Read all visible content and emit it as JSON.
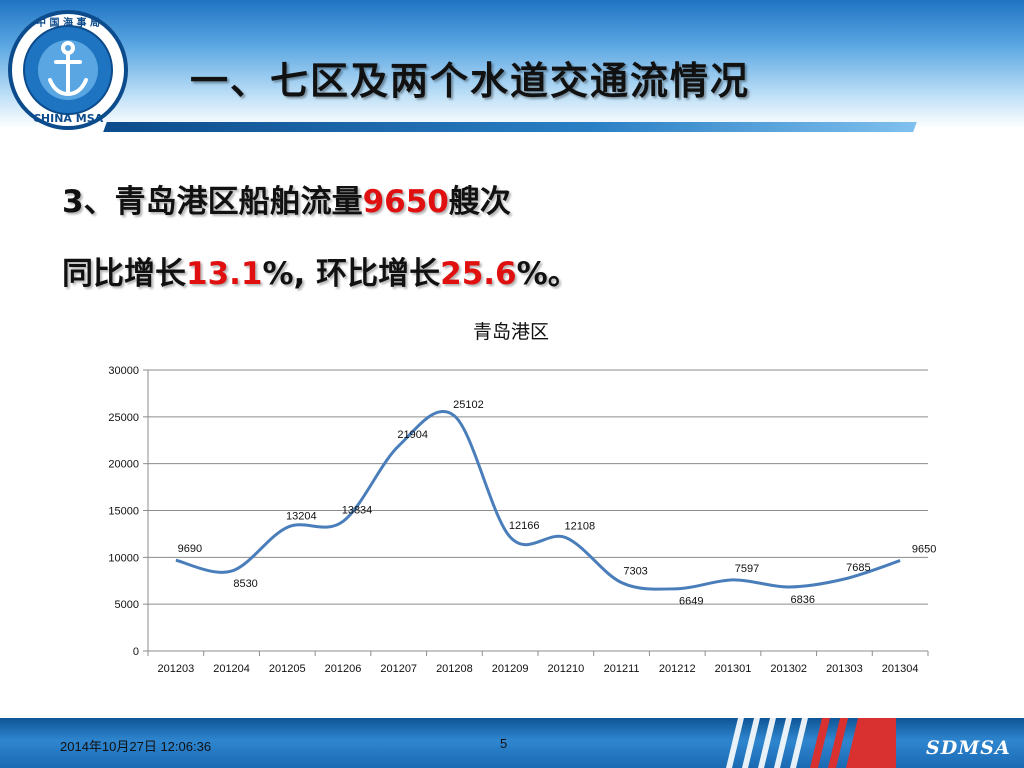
{
  "header": {
    "title": "一、七区及两个水道交通流情况",
    "logo": {
      "top_text": "中 国 海 事 局",
      "bottom_text": "CHINA MSA",
      "icon": "anchor-emblem"
    }
  },
  "body": {
    "line1": {
      "prefix": "3、青岛港区船舶流量",
      "value": "9650",
      "suffix": "艘次"
    },
    "line2": {
      "prefix": "同比增长",
      "yoy": "13.1",
      "mid": "%, 环比增长",
      "mom": "25.6",
      "suffix": "%。"
    }
  },
  "chart_data": {
    "type": "line",
    "title": "青岛港区",
    "categories": [
      "201203",
      "201204",
      "201205",
      "201206",
      "201207",
      "201208",
      "201209",
      "201210",
      "201211",
      "201212",
      "201301",
      "201302",
      "201303",
      "201304"
    ],
    "values": [
      9690,
      8530,
      13204,
      13834,
      21904,
      25102,
      12166,
      12108,
      7303,
      6649,
      7597,
      6836,
      7685,
      9650
    ],
    "ylim": [
      0,
      30000
    ],
    "yticks": [
      0,
      5000,
      10000,
      15000,
      20000,
      25000,
      30000
    ],
    "grid": true,
    "smooth": true,
    "line_color": "#4a7ebb",
    "grid_color": "#8c8c8c"
  },
  "footer": {
    "date": "2014年10月27日  12:06:36",
    "page": "5",
    "brand": "SDMSA"
  },
  "colors": {
    "highlight": "#e01010",
    "header_blue": "#1f74c2",
    "footer_blue": "#1a69b3"
  }
}
